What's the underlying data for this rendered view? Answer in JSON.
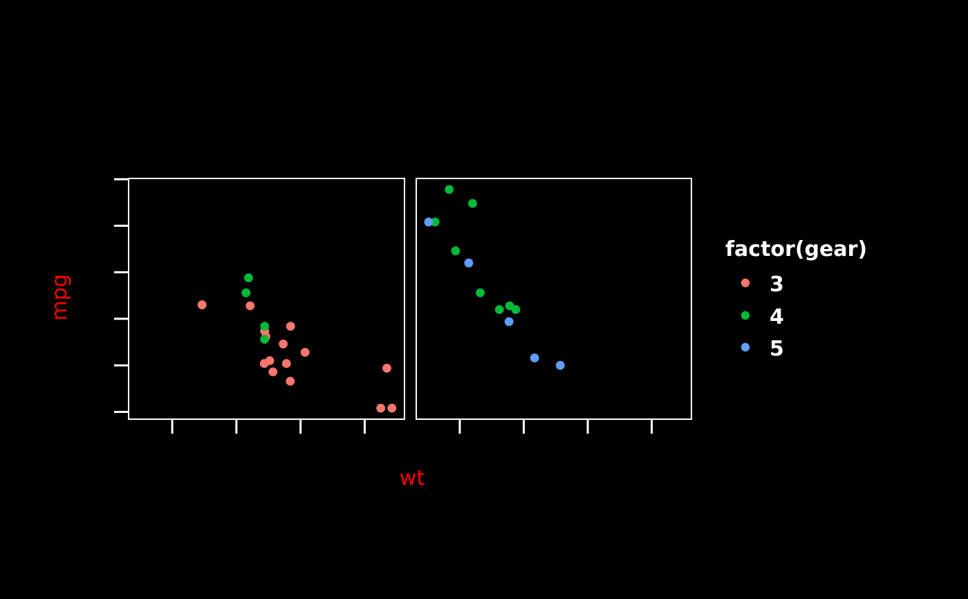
{
  "figure": {
    "background": "#000000",
    "panel_border_color": "#FFFFFF",
    "tick_color": "#FFFFFF",
    "axis_title_color": "#FF0000",
    "legend_text_color": "#FFFFFF"
  },
  "legend": {
    "title": "factor(gear)",
    "items": [
      {
        "label": "3",
        "color": "#F8766D"
      },
      {
        "label": "4",
        "color": "#00BA38"
      },
      {
        "label": "5",
        "color": "#619CFF"
      }
    ]
  },
  "chart_data": {
    "type": "scatter",
    "title": "",
    "xlabel": "wt",
    "ylabel": "mpg",
    "legend_title": "factor(gear)",
    "legend_position": "right",
    "grid": false,
    "x_ticks": [
      2,
      3,
      4,
      5
    ],
    "y_ticks": [
      10,
      15,
      20,
      25,
      30,
      35
    ],
    "xlim": [
      1.32,
      5.62
    ],
    "ylim": [
      9.22,
      35.08
    ],
    "series_key": "gear",
    "facets": [
      {
        "name": "left-facet",
        "points": [
          {
            "wt": 3.215,
            "mpg": 21.4,
            "gear": "3"
          },
          {
            "wt": 3.44,
            "mpg": 18.7,
            "gear": "3"
          },
          {
            "wt": 3.46,
            "mpg": 18.1,
            "gear": "3"
          },
          {
            "wt": 3.57,
            "mpg": 14.3,
            "gear": "3"
          },
          {
            "wt": 3.19,
            "mpg": 24.4,
            "gear": "4"
          },
          {
            "wt": 3.15,
            "mpg": 22.8,
            "gear": "4"
          },
          {
            "wt": 3.44,
            "mpg": 19.2,
            "gear": "4"
          },
          {
            "wt": 3.44,
            "mpg": 17.8,
            "gear": "4"
          },
          {
            "wt": 4.07,
            "mpg": 16.4,
            "gear": "3"
          },
          {
            "wt": 3.73,
            "mpg": 17.3,
            "gear": "3"
          },
          {
            "wt": 3.78,
            "mpg": 15.2,
            "gear": "3"
          },
          {
            "wt": 5.25,
            "mpg": 10.4,
            "gear": "3"
          },
          {
            "wt": 5.424,
            "mpg": 10.4,
            "gear": "3"
          },
          {
            "wt": 5.345,
            "mpg": 14.7,
            "gear": "3"
          },
          {
            "wt": 2.465,
            "mpg": 21.5,
            "gear": "3"
          },
          {
            "wt": 3.52,
            "mpg": 15.5,
            "gear": "3"
          },
          {
            "wt": 3.435,
            "mpg": 15.2,
            "gear": "3"
          },
          {
            "wt": 3.84,
            "mpg": 13.3,
            "gear": "3"
          },
          {
            "wt": 3.845,
            "mpg": 19.2,
            "gear": "3"
          }
        ]
      },
      {
        "name": "right-facet",
        "points": [
          {
            "wt": 2.62,
            "mpg": 21.0,
            "gear": "4"
          },
          {
            "wt": 2.875,
            "mpg": 21.0,
            "gear": "4"
          },
          {
            "wt": 2.32,
            "mpg": 22.8,
            "gear": "4"
          },
          {
            "wt": 2.2,
            "mpg": 32.4,
            "gear": "4"
          },
          {
            "wt": 1.615,
            "mpg": 30.4,
            "gear": "4"
          },
          {
            "wt": 1.835,
            "mpg": 33.9,
            "gear": "4"
          },
          {
            "wt": 1.935,
            "mpg": 27.3,
            "gear": "4"
          },
          {
            "wt": 2.14,
            "mpg": 26.0,
            "gear": "5"
          },
          {
            "wt": 1.513,
            "mpg": 30.4,
            "gear": "5"
          },
          {
            "wt": 3.17,
            "mpg": 15.8,
            "gear": "5"
          },
          {
            "wt": 2.77,
            "mpg": 19.7,
            "gear": "5"
          },
          {
            "wt": 3.57,
            "mpg": 15.0,
            "gear": "5"
          },
          {
            "wt": 2.78,
            "mpg": 21.4,
            "gear": "4"
          }
        ]
      }
    ]
  }
}
